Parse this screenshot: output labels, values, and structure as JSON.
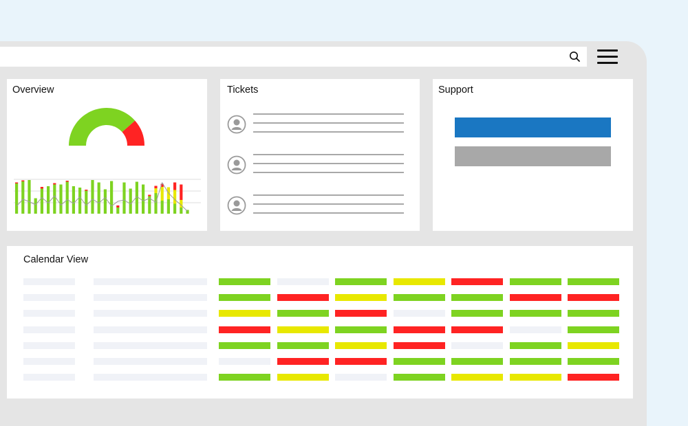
{
  "topbar": {
    "search_icon": "search-icon",
    "menu_icon": "hamburger-menu-icon"
  },
  "overview": {
    "title": "Overview",
    "gauge": {
      "segments": [
        {
          "status": "ok",
          "fraction": 0.77
        },
        {
          "status": "critical",
          "fraction": 0.23
        }
      ]
    },
    "bars": [
      {
        "green": 0.88,
        "red": 0.03
      },
      {
        "green": 0.94,
        "red": 0.03
      },
      {
        "green": 0.98,
        "red": 0
      },
      {
        "green": 0.45,
        "red": 0
      },
      {
        "green": 0.73,
        "red": 0.05
      },
      {
        "green": 0.8,
        "red": 0
      },
      {
        "green": 0.85,
        "red": 0.04
      },
      {
        "green": 0.85,
        "red": 0
      },
      {
        "green": 0.93,
        "red": 0.03
      },
      {
        "green": 0.8,
        "red": 0
      },
      {
        "green": 0.76,
        "red": 0
      },
      {
        "green": 0.67,
        "red": 0.03
      },
      {
        "green": 0.98,
        "red": 0
      },
      {
        "green": 0.91,
        "red": 0
      },
      {
        "green": 0.71,
        "red": 0
      },
      {
        "green": 0.95,
        "red": 0
      },
      {
        "green": 0.18,
        "red": 0.06
      },
      {
        "green": 0.91,
        "red": 0
      },
      {
        "green": 0.73,
        "red": 0
      },
      {
        "green": 0.93,
        "red": 0
      },
      {
        "green": 0.85,
        "red": 0
      },
      {
        "green": 0.51,
        "red": 0.04
      },
      {
        "green": 0.6,
        "yellow": 0.14,
        "red": 0.07
      },
      {
        "green": 0.38,
        "yellow": 0.4,
        "red": 0.09
      },
      {
        "green": 0.42,
        "yellow": 0.35,
        "red": 0
      },
      {
        "green": 0.29,
        "yellow": 0.4,
        "red": 0.22
      },
      {
        "green": 0.18,
        "yellow": 0.22,
        "red": 0.45
      },
      {
        "green": 0.11,
        "yellow": 0,
        "red": 0
      }
    ],
    "trend": [
      0.22,
      0.42,
      0.35,
      0.26,
      0.47,
      0.31,
      0.52,
      0.25,
      0.41,
      0.3,
      0.49,
      0.24,
      0.42,
      0.31,
      0.47,
      0.22,
      0.36,
      0.4,
      0.28,
      0.5,
      0.37,
      0.45,
      0.33,
      0.9,
      0.6,
      0.41,
      0.25,
      0.07
    ]
  },
  "tickets": {
    "title": "Tickets",
    "avatar_icon": "user-avatar-icon",
    "items": [
      {
        "lines": 3
      },
      {
        "lines": 3
      },
      {
        "lines": 3
      }
    ]
  },
  "support": {
    "title": "Support",
    "bars": [
      {
        "status": "primary",
        "color": "#1a77c2"
      },
      {
        "status": "secondary",
        "color": "#a8a8a8"
      }
    ]
  },
  "calendar": {
    "title": "Calendar View",
    "status_colors": {
      "G": "#7ed321",
      "R": "#ff2323",
      "Y": "#e8e800",
      "E": "#f0f2f7"
    },
    "rows": [
      [
        "G",
        "E",
        "G",
        "Y",
        "R",
        "G",
        "G"
      ],
      [
        "G",
        "R",
        "Y",
        "G",
        "G",
        "R",
        "R"
      ],
      [
        "Y",
        "G",
        "R",
        "E",
        "G",
        "G",
        "G"
      ],
      [
        "R",
        "Y",
        "G",
        "R",
        "R",
        "E",
        "G"
      ],
      [
        "G",
        "G",
        "Y",
        "R",
        "E",
        "G",
        "Y"
      ],
      [
        "E",
        "R",
        "R",
        "G",
        "G",
        "G",
        "G"
      ],
      [
        "G",
        "Y",
        "E",
        "G",
        "Y",
        "Y",
        "R"
      ]
    ]
  },
  "colors": {
    "green": "#7ed321",
    "red": "#ff2323",
    "yellow": "#e8e800",
    "placeholder": "#f0f2f7"
  }
}
